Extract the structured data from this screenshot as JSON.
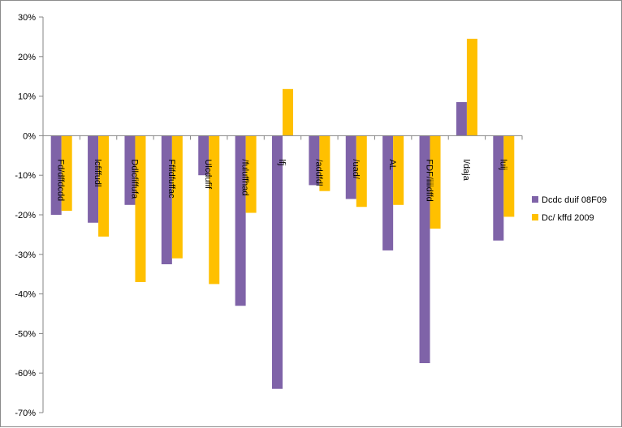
{
  "colors": {
    "series1": "#7f63a8",
    "series2": "#ffc000",
    "axis": "#868686",
    "border": "#8c8c8c"
  },
  "chart_data": {
    "type": "bar",
    "categories": [
      "Fd/dffdcdd",
      "lcfiffudl",
      "Ddlcfiffufa",
      "Ffifdfuffac",
      "Ulcdufif",
      "/fuluffhad",
      "lfj",
      "/addfdl",
      "/uad/",
      "AL",
      "FDF/iiiidffd",
      "l/daja",
      "luij"
    ],
    "series": [
      {
        "name": "Dcdc duif 08F09",
        "values": [
          -20,
          -22,
          -17.5,
          -32.5,
          -10,
          -43,
          -64,
          -12.5,
          -16,
          -29,
          -57.5,
          8.5,
          -26.5
        ]
      },
      {
        "name": "Dc/ kffd 2009",
        "values": [
          -19,
          -25.5,
          -37,
          -31,
          -37.5,
          -19.5,
          11.8,
          -14,
          -18,
          -17.5,
          -23.5,
          24.5,
          -20.5
        ]
      }
    ],
    "ylim": [
      -70,
      30
    ],
    "yticks": [
      "30%",
      "20%",
      "10%",
      "0%",
      "-10%",
      "-20%",
      "-30%",
      "-40%",
      "-50%",
      "-60%",
      "-70%"
    ],
    "ytick_values": [
      30,
      20,
      10,
      0,
      -10,
      -20,
      -30,
      -40,
      -50,
      -60,
      -70
    ],
    "grid": false,
    "legend_position": "right",
    "title": "",
    "xlabel": "",
    "ylabel": ""
  }
}
